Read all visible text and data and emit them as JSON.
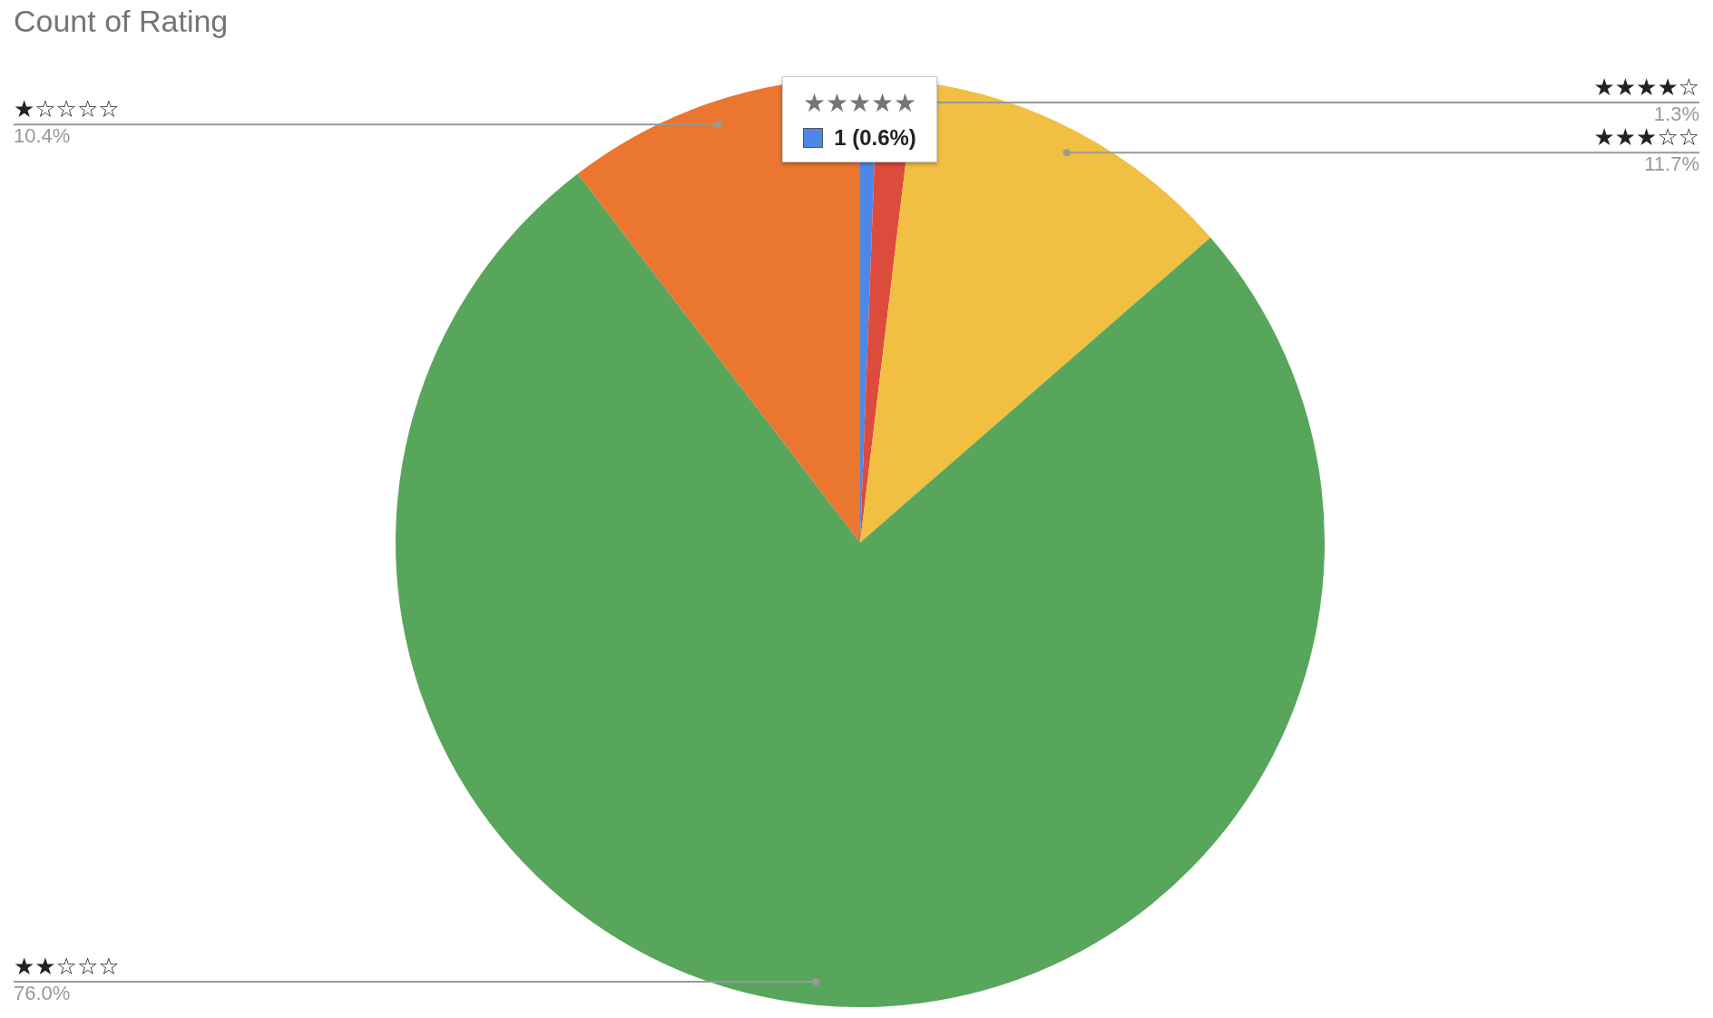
{
  "chart_data": {
    "type": "pie",
    "title": "Count of Rating",
    "categories": [
      "★★★★★",
      "★★★★☆",
      "★★★☆☆",
      "★★☆☆☆",
      "★☆☆☆☆"
    ],
    "values": [
      0.6,
      1.3,
      11.7,
      76.0,
      10.4
    ],
    "colors": [
      "#4e87e6",
      "#dc4b3b",
      "#f1bf42",
      "#58a65b",
      "#eb7630"
    ],
    "value_labels": [
      null,
      "1.3%",
      "11.7%",
      "76.0%",
      "10.4%"
    ],
    "annotations": [
      {
        "text": "1 (0.6%)",
        "x": "★★★★★"
      }
    ]
  }
}
